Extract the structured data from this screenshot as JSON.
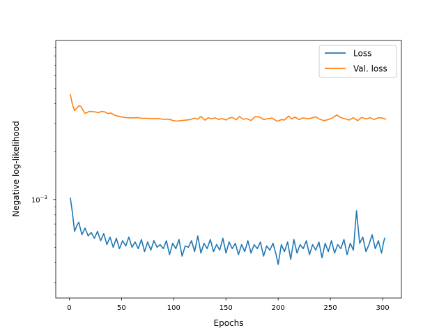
{
  "chart_data": {
    "type": "line",
    "title": "",
    "xlabel": "Epochs",
    "ylabel": "Negative log-likelihood",
    "xlim": [
      -13,
      318
    ],
    "ylim_log10": [
      -3.62,
      -2.0
    ],
    "y_scale": "log",
    "grid": false,
    "legend_position": "upper right",
    "x_ticks": [
      0,
      50,
      100,
      150,
      200,
      250,
      300
    ],
    "x_tick_labels": [
      "0",
      "50",
      "100",
      "150",
      "200",
      "250",
      "300"
    ],
    "y_major_tick_log10": -3,
    "y_major_tick_label_base": "10",
    "y_major_tick_label_exp": "−3",
    "series": [
      {
        "name": "Loss",
        "color": "#1f77b4",
        "x": [
          1,
          3,
          5,
          7,
          9,
          12,
          15,
          18,
          21,
          24,
          27,
          30,
          33,
          36,
          39,
          42,
          45,
          48,
          51,
          54,
          57,
          60,
          63,
          66,
          69,
          72,
          75,
          78,
          81,
          84,
          87,
          90,
          93,
          96,
          99,
          102,
          105,
          108,
          111,
          114,
          117,
          120,
          123,
          126,
          129,
          132,
          135,
          138,
          141,
          144,
          147,
          150,
          153,
          156,
          159,
          162,
          165,
          168,
          171,
          174,
          177,
          180,
          183,
          186,
          189,
          192,
          195,
          198,
          200,
          203,
          206,
          209,
          212,
          215,
          218,
          221,
          224,
          227,
          230,
          233,
          236,
          239,
          242,
          245,
          248,
          251,
          254,
          257,
          260,
          263,
          266,
          269,
          272,
          275,
          278,
          281,
          284,
          287,
          290,
          293,
          296,
          299,
          301,
          302
        ],
        "y": [
          0.00102,
          0.00082,
          0.00063,
          0.00068,
          0.00072,
          0.0006,
          0.00066,
          0.00059,
          0.00062,
          0.00057,
          0.00063,
          0.00055,
          0.00061,
          0.00052,
          0.00058,
          0.0005,
          0.00057,
          0.00049,
          0.00055,
          0.00051,
          0.00058,
          0.0005,
          0.00054,
          0.00049,
          0.00056,
          0.00047,
          0.00054,
          0.00048,
          0.00055,
          0.0005,
          0.00052,
          0.00049,
          0.00055,
          0.00045,
          0.00053,
          0.00049,
          0.00056,
          0.00044,
          0.00051,
          0.0005,
          0.00055,
          0.00047,
          0.00059,
          0.00046,
          0.00053,
          0.00049,
          0.00056,
          0.00047,
          0.00052,
          0.00048,
          0.00057,
          0.00046,
          0.00054,
          0.00049,
          0.00053,
          0.00045,
          0.00052,
          0.00047,
          0.00055,
          0.00046,
          0.00052,
          0.00049,
          0.00054,
          0.00044,
          0.00051,
          0.00048,
          0.00053,
          0.00045,
          0.00039,
          0.00052,
          0.00047,
          0.00054,
          0.00042,
          0.00056,
          0.00046,
          0.00052,
          0.00049,
          0.00055,
          0.00045,
          0.00052,
          0.00048,
          0.00054,
          0.00043,
          0.00053,
          0.00047,
          0.00055,
          0.00046,
          0.00052,
          0.00049,
          0.00056,
          0.00045,
          0.00053,
          0.00048,
          0.00085,
          0.00053,
          0.00058,
          0.00047,
          0.00052,
          0.0006,
          0.00049,
          0.00055,
          0.00046,
          0.00054,
          0.00057
        ]
      },
      {
        "name": "Val. loss",
        "color": "#ff7f0e",
        "x": [
          1,
          3,
          5,
          7,
          9,
          11,
          13,
          15,
          17,
          19,
          22,
          25,
          28,
          31,
          34,
          37,
          40,
          43,
          46,
          50,
          55,
          60,
          65,
          70,
          75,
          80,
          85,
          90,
          95,
          100,
          103,
          106,
          110,
          115,
          120,
          123,
          126,
          130,
          133,
          136,
          140,
          143,
          146,
          150,
          153,
          156,
          160,
          163,
          166,
          170,
          174,
          178,
          182,
          186,
          190,
          194,
          198,
          200,
          203,
          206,
          210,
          213,
          216,
          220,
          224,
          228,
          232,
          236,
          240,
          244,
          248,
          252,
          256,
          260,
          264,
          268,
          272,
          276,
          280,
          284,
          288,
          292,
          296,
          300,
          303
        ],
        "y": [
          0.00455,
          0.00395,
          0.00362,
          0.00375,
          0.00388,
          0.00385,
          0.00365,
          0.00348,
          0.00352,
          0.00358,
          0.00357,
          0.00355,
          0.00352,
          0.00358,
          0.00355,
          0.00347,
          0.0035,
          0.0034,
          0.00335,
          0.0033,
          0.00327,
          0.00326,
          0.00327,
          0.00324,
          0.00324,
          0.00322,
          0.00323,
          0.00319,
          0.0032,
          0.00313,
          0.00311,
          0.00313,
          0.00315,
          0.00317,
          0.00325,
          0.0032,
          0.00333,
          0.00315,
          0.00327,
          0.00322,
          0.00326,
          0.00318,
          0.00323,
          0.00316,
          0.00325,
          0.00328,
          0.00317,
          0.00333,
          0.0032,
          0.00322,
          0.00314,
          0.00332,
          0.0033,
          0.00318,
          0.00322,
          0.00325,
          0.00313,
          0.00311,
          0.00318,
          0.00316,
          0.00335,
          0.00321,
          0.0033,
          0.00318,
          0.00326,
          0.00322,
          0.00325,
          0.00331,
          0.00319,
          0.00313,
          0.00318,
          0.00326,
          0.0034,
          0.00327,
          0.00322,
          0.00316,
          0.00327,
          0.00313,
          0.00328,
          0.00321,
          0.00327,
          0.00318,
          0.00327,
          0.00325,
          0.0032
        ]
      }
    ]
  }
}
